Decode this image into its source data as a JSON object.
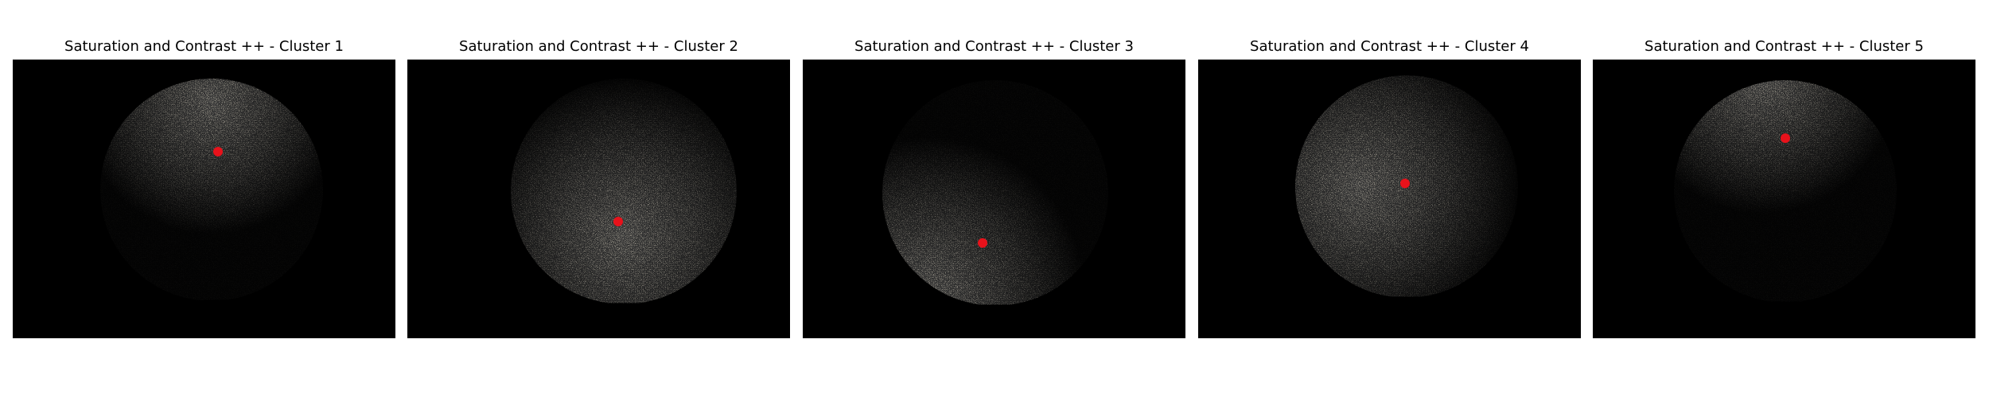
{
  "panels": [
    {
      "title": "Saturation and Contrast ++ - Cluster 1"
    },
    {
      "title": "Saturation and Contrast ++ - Cluster 2"
    },
    {
      "title": "Saturation and Contrast ++ - Cluster 3"
    },
    {
      "title": "Saturation and Contrast ++ - Cluster 4"
    },
    {
      "title": "Saturation and Contrast ++ - Cluster 5"
    }
  ]
}
